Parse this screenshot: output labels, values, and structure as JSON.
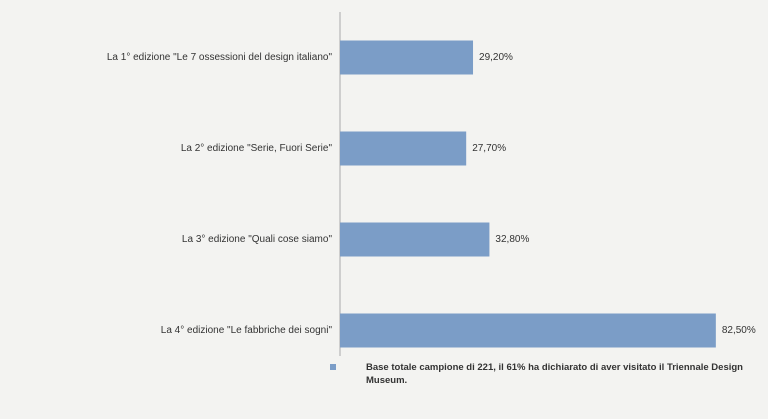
{
  "chart_data": {
    "type": "bar",
    "orientation": "horizontal",
    "categories": [
      "La 1° edizione \"Le 7 ossessioni del design italiano\"",
      "La 2° edizione \"Serie, Fuori Serie\"",
      "La 3° edizione \"Quali cose siamo\"",
      "La 4° edizione \"Le fabbriche dei sogni\""
    ],
    "series": [
      {
        "name": "Base totale campione di 221, il 61% ha dichiarato di aver visitato il Triennale Design Museum.",
        "color": "#7b9dc7",
        "values": [
          29.2,
          27.7,
          32.8,
          82.5
        ],
        "value_labels": [
          "29,20%",
          "27,70%",
          "32,80%",
          "82,50%"
        ]
      }
    ],
    "xlim": [
      0,
      90
    ],
    "legend": "bottom"
  }
}
